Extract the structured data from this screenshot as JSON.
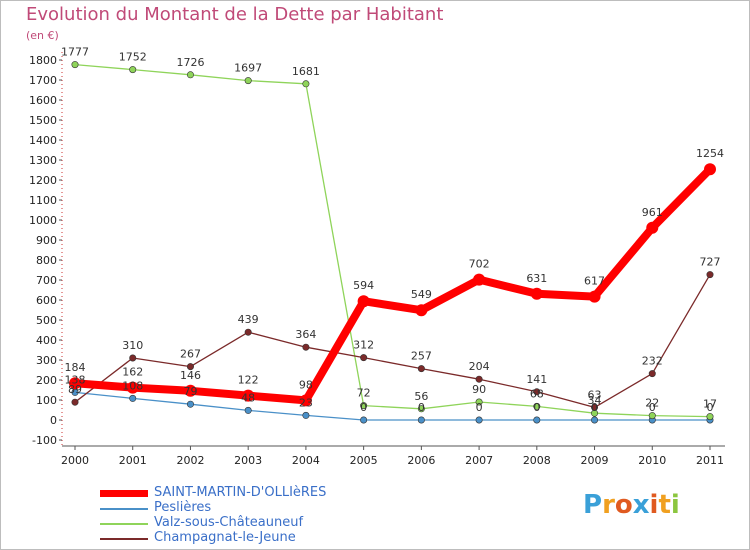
{
  "title": "Evolution du Montant de la Dette par Habitant",
  "unit": "(en €)",
  "logo": {
    "letters": [
      {
        "ch": "P",
        "color": "#3aa0d8"
      },
      {
        "ch": "r",
        "color": "#f0a020"
      },
      {
        "ch": "o",
        "color": "#e05a20"
      },
      {
        "ch": "x",
        "color": "#3aa0d8"
      },
      {
        "ch": "i",
        "color": "#e05a20"
      },
      {
        "ch": "t",
        "color": "#f0a020"
      },
      {
        "ch": "i",
        "color": "#8cc63f"
      }
    ]
  },
  "chart_data": {
    "type": "line",
    "title": "Evolution du Montant de la Dette par Habitant",
    "ylabel": "(en €)",
    "x": [
      "2000",
      "2001",
      "2002",
      "2003",
      "2004",
      "2005",
      "2006",
      "2007",
      "2008",
      "2009",
      "2010",
      "2011"
    ],
    "ylim": [
      -100,
      1800
    ],
    "yticks": [
      -100,
      0,
      100,
      200,
      300,
      400,
      500,
      600,
      700,
      800,
      900,
      1000,
      1100,
      1200,
      1300,
      1400,
      1500,
      1600,
      1700,
      1800
    ],
    "grid": false,
    "legend_position": "bottom-left",
    "series": [
      {
        "name": "SAINT-MARTIN-D'OLLIèRES",
        "color": "#ff0000",
        "values": [
          184,
          162,
          146,
          122,
          98,
          594,
          549,
          702,
          631,
          617,
          961,
          1254
        ],
        "labels": [
          "184",
          "162",
          "146",
          "122",
          "98",
          "594",
          "549",
          "702",
          "631",
          "617",
          "961",
          "1254"
        ]
      },
      {
        "name": "Peslières",
        "color": "#4a90c8",
        "values": [
          138,
          108,
          79,
          48,
          23,
          0,
          0,
          0,
          0,
          0,
          0,
          0
        ],
        "labels": [
          "138",
          "108",
          "79",
          "48",
          "23",
          "0",
          "0",
          "0",
          "0",
          "0",
          "0",
          "0"
        ]
      },
      {
        "name": "Valz-sous-Châteauneuf",
        "color": "#8fd45a",
        "values": [
          1777,
          1752,
          1726,
          1697,
          1681,
          72,
          56,
          90,
          68,
          34,
          22,
          17
        ],
        "labels": [
          "1777",
          "1752",
          "1726",
          "1697",
          "1681",
          "72",
          "56",
          "90",
          "68",
          "34",
          "22",
          "17"
        ]
      },
      {
        "name": "Champagnat-le-Jeune",
        "color": "#7b2a2a",
        "values": [
          89,
          310,
          267,
          439,
          364,
          312,
          257,
          204,
          141,
          63,
          232,
          727
        ],
        "labels": [
          "89",
          "310",
          "267",
          "439",
          "364",
          "312",
          "257",
          "204",
          "141",
          "63",
          "232",
          "727"
        ]
      }
    ]
  }
}
